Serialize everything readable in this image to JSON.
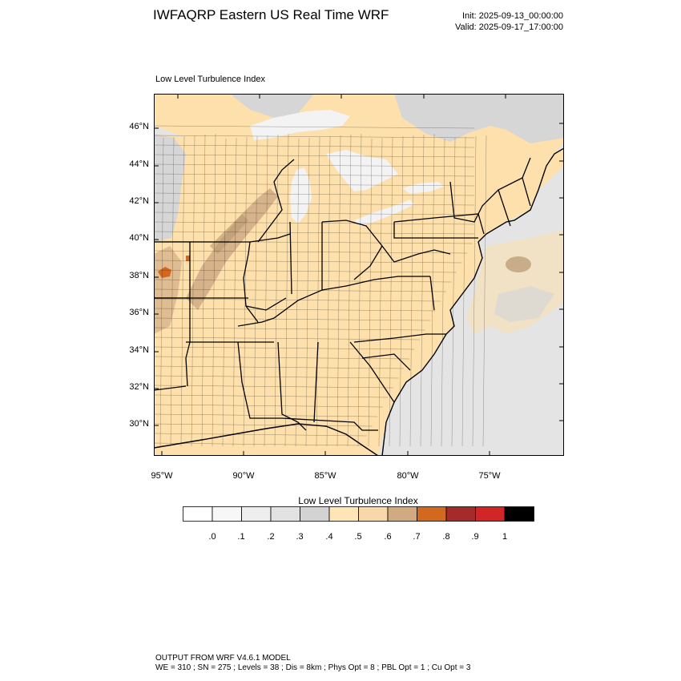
{
  "header": {
    "title": "IWFAQRP Eastern US Real Time WRF",
    "init": "Init: 2025-09-13_00:00:00",
    "valid": "Valid: 2025-09-17_17:00:00"
  },
  "map": {
    "field_label": "Low Level Turbulence Index",
    "lat_labels": [
      "46°N",
      "44°N",
      "42°N",
      "40°N",
      "38°N",
      "36°N",
      "34°N",
      "32°N",
      "30°N"
    ],
    "lon_labels": [
      "95°W",
      "90°W",
      "85°W",
      "80°W",
      "75°W"
    ],
    "colors": {
      "land": "#fde0ab",
      "water_light": "#e4e4e4",
      "lake": "#f3f3f3",
      "band": "#d7b38c",
      "band_dark": "#b89670",
      "hotspot": "#d2691e",
      "gray_zone": "#d6d6d6",
      "border": "#000000"
    }
  },
  "colorbar": {
    "title": "Low Level Turbulence Index",
    "labels": [
      ".0",
      ".1",
      ".2",
      ".3",
      ".4",
      ".5",
      ".6",
      ".7",
      ".8",
      ".9",
      "1"
    ],
    "colors": [
      "#ffffff",
      "#f7f7f7",
      "#eeeeee",
      "#e2e2e2",
      "#d3d3d3",
      "#ffe4b5",
      "#f8d8a8",
      "#d2aa80",
      "#d2691e",
      "#a52a2a",
      "#d22626",
      "#000000"
    ]
  },
  "footer": {
    "line1": "OUTPUT FROM WRF V4.6.1 MODEL",
    "line2": "WE = 310 ; SN = 275 ; Levels = 38 ; Dis = 8km ; Phys Opt = 8 ; PBL Opt = 1 ; Cu Opt = 3"
  }
}
